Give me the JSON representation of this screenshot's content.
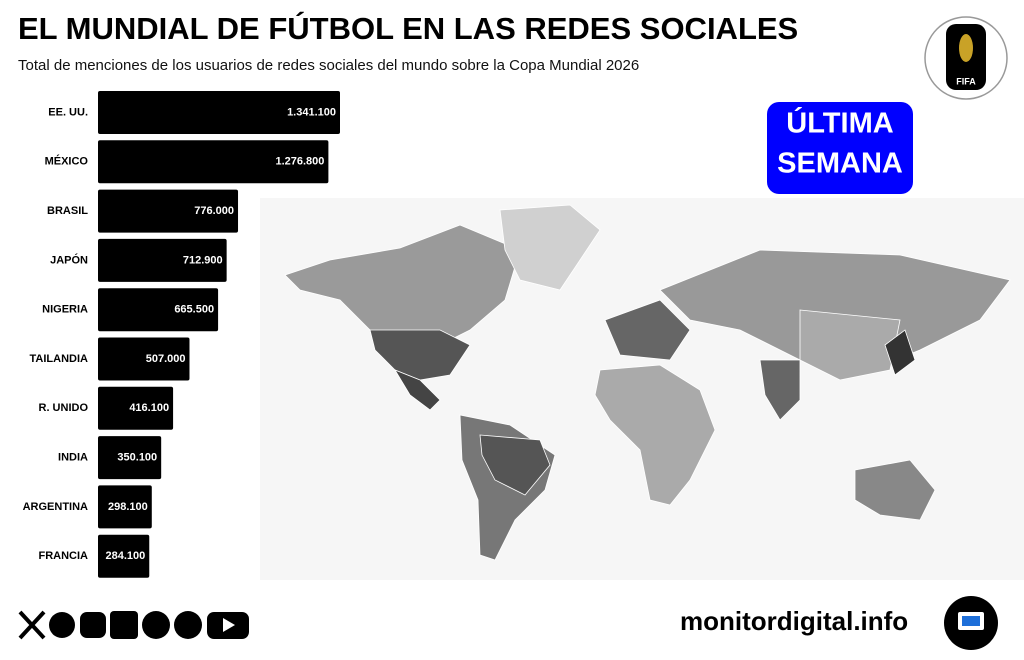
{
  "chart_data": {
    "type": "hbar",
    "title": "EL MUNDIAL DE FÚTBOL EN LAS REDES SOCIALES",
    "subtitle": "Total de menciones de los usuarios de redes sociales del mundo sobre la Copa Mundial 2026",
    "categories": [
      "EE. UU.",
      "MÉXICO",
      "BRASIL",
      "JAPÓN",
      "NIGERIA",
      "TAILANDIA",
      "R. UNIDO",
      "INDIA",
      "ARGENTINA",
      "FRANCIA"
    ],
    "values": [
      1341100,
      1276800,
      776000,
      712900,
      665500,
      507000,
      416100,
      350100,
      298100,
      284100
    ],
    "value_labels": [
      "1.341.100",
      "1.276.800",
      "776.000",
      "712.900",
      "665.500",
      "507.000",
      "416.100",
      "350.100",
      "298.100",
      "284.100"
    ],
    "color": "#000000"
  },
  "badge": [
    "ÚLTIMA",
    "SEMANA"
  ],
  "logo": "FIFA",
  "footer": "monitordigital.info"
}
